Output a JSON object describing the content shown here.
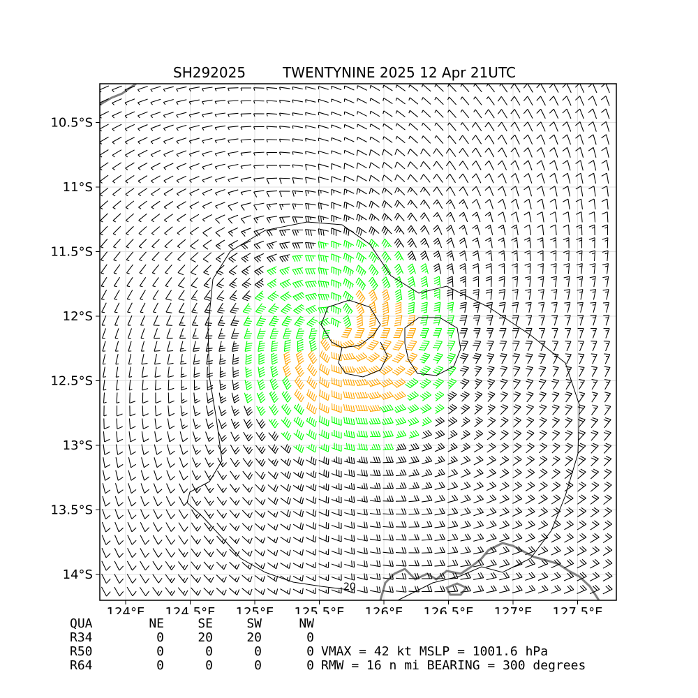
{
  "title": {
    "storm_id": "SH292025",
    "storm_info": "TWENTYNINE 2025 12 Apr 21UTC"
  },
  "chart_data": {
    "type": "wind-barb-map",
    "x_axis": {
      "range": [
        123.8,
        127.8
      ],
      "ticks": [
        124.0,
        124.5,
        125.0,
        125.5,
        126.0,
        126.5,
        127.0,
        127.5
      ],
      "tick_labels": [
        "124°E",
        "124.5°E",
        "125°E",
        "125.5°E",
        "126°E",
        "126.5°E",
        "127°E",
        "127.5°E"
      ]
    },
    "y_axis": {
      "range": [
        -14.2,
        -10.2
      ],
      "ticks": [
        -10.5,
        -11.0,
        -11.5,
        -12.0,
        -12.5,
        -13.0,
        -13.5,
        -14.0
      ],
      "tick_labels": [
        "10.5°S",
        "11°S",
        "11.5°S",
        "12°S",
        "12.5°S",
        "13°S",
        "13.5°S",
        "14°S"
      ]
    },
    "grid": true,
    "center": {
      "lon": 125.62,
      "lat": -12.12
    },
    "vmax_kt": 42,
    "rmw_nmi": 16,
    "wind_color_scale": [
      {
        "min_kt": 0,
        "color": "#000000"
      },
      {
        "min_kt": 34,
        "color": "#00ff00"
      },
      {
        "min_kt": 50,
        "color": "#ffa500"
      },
      {
        "min_kt": 64,
        "color": "#ff0000"
      }
    ],
    "contour_label": "20",
    "coastline_color": "#808080"
  },
  "wind_radii": {
    "header": [
      "QUA",
      "NE",
      "SE",
      "SW",
      "NW"
    ],
    "rows": [
      {
        "label": "R34",
        "values": [
          "0",
          "20",
          "20",
          "0"
        ]
      },
      {
        "label": "R50",
        "values": [
          "0",
          "0",
          "0",
          "0"
        ]
      },
      {
        "label": "R64",
        "values": [
          "0",
          "0",
          "0",
          "0"
        ]
      }
    ]
  },
  "summary": {
    "line1": "VMAX =  42 kt MSLP = 1001.6 hPa",
    "line2": "RMW =  16 n mi BEARING = 300 degrees"
  }
}
